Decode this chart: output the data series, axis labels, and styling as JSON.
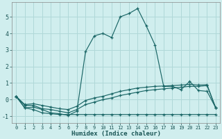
{
  "xlabel": "Humidex (Indice chaleur)",
  "bg_color": "#d0eeee",
  "grid_color": "#b0d8d8",
  "line_color": "#1a6666",
  "xlim": [
    -0.5,
    23.5
  ],
  "ylim": [
    -1.4,
    5.9
  ],
  "yticks": [
    -1,
    0,
    1,
    2,
    3,
    4,
    5
  ],
  "xticks": [
    0,
    1,
    2,
    3,
    4,
    5,
    6,
    7,
    8,
    9,
    10,
    11,
    12,
    13,
    14,
    15,
    16,
    17,
    18,
    19,
    20,
    21,
    22,
    23
  ],
  "series": {
    "main": [
      0.2,
      -0.5,
      -0.45,
      -0.6,
      -0.8,
      -0.85,
      -0.95,
      -0.7,
      2.9,
      3.85,
      4.0,
      3.75,
      5.0,
      5.2,
      5.5,
      4.45,
      3.3,
      0.8,
      0.8,
      0.6,
      1.1,
      0.55,
      0.5,
      -0.5
    ],
    "flat": [
      0.2,
      -0.5,
      -0.6,
      -0.8,
      -0.85,
      -0.9,
      -0.9,
      -0.9,
      -0.9,
      -0.9,
      -0.9,
      -0.9,
      -0.9,
      -0.9,
      -0.9,
      -0.9,
      -0.9,
      -0.9,
      -0.9,
      -0.9,
      -0.9,
      -0.9,
      -0.9,
      -0.9
    ],
    "mid": [
      0.2,
      -0.35,
      -0.35,
      -0.55,
      -0.6,
      -0.7,
      -0.8,
      -0.6,
      -0.3,
      -0.15,
      0.0,
      0.1,
      0.25,
      0.35,
      0.45,
      0.55,
      0.6,
      0.65,
      0.7,
      0.75,
      0.8,
      0.8,
      0.85,
      -0.5
    ],
    "upper": [
      0.2,
      -0.3,
      -0.25,
      -0.35,
      -0.45,
      -0.55,
      -0.6,
      -0.4,
      -0.05,
      0.1,
      0.2,
      0.35,
      0.5,
      0.6,
      0.7,
      0.75,
      0.8,
      0.82,
      0.85,
      0.88,
      0.92,
      0.88,
      0.9,
      -0.5
    ]
  }
}
